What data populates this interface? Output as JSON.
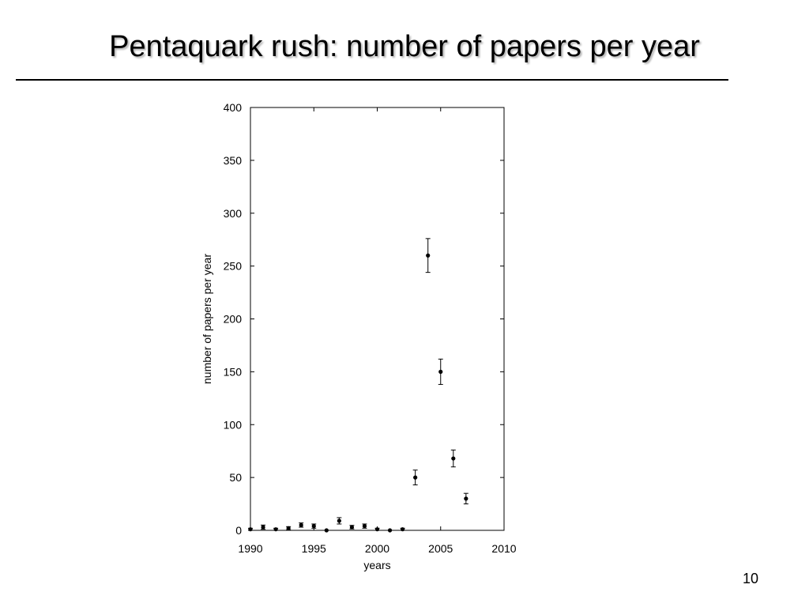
{
  "slide": {
    "title": "Pentaquark rush: number of papers per year",
    "page_number": "10"
  },
  "chart_data": {
    "type": "scatter",
    "title": "",
    "xlabel": "years",
    "ylabel": "number of papers per year",
    "xlim": [
      1990,
      2010
    ],
    "ylim": [
      0,
      400
    ],
    "x_ticks": [
      1990,
      1995,
      2000,
      2005,
      2010
    ],
    "y_ticks": [
      0,
      50,
      100,
      150,
      200,
      250,
      300,
      350,
      400
    ],
    "grid": false,
    "legend": "none",
    "marker_color": "#000000",
    "series": [
      {
        "points": [
          {
            "x": 1990,
            "y": 1,
            "err": 1
          },
          {
            "x": 1991,
            "y": 3,
            "err": 2
          },
          {
            "x": 1992,
            "y": 1,
            "err": 1
          },
          {
            "x": 1993,
            "y": 2,
            "err": 1.5
          },
          {
            "x": 1994,
            "y": 5,
            "err": 2
          },
          {
            "x": 1995,
            "y": 4,
            "err": 2
          },
          {
            "x": 1996,
            "y": 0,
            "err": 0
          },
          {
            "x": 1997,
            "y": 9,
            "err": 3
          },
          {
            "x": 1998,
            "y": 3,
            "err": 1.7
          },
          {
            "x": 1999,
            "y": 4,
            "err": 2
          },
          {
            "x": 2000,
            "y": 1,
            "err": 1
          },
          {
            "x": 2001,
            "y": 0,
            "err": 0
          },
          {
            "x": 2002,
            "y": 1,
            "err": 1
          },
          {
            "x": 2003,
            "y": 50,
            "err": 7
          },
          {
            "x": 2004,
            "y": 260,
            "err": 16
          },
          {
            "x": 2005,
            "y": 150,
            "err": 12
          },
          {
            "x": 2006,
            "y": 68,
            "err": 8
          },
          {
            "x": 2007,
            "y": 30,
            "err": 5
          }
        ]
      }
    ]
  }
}
